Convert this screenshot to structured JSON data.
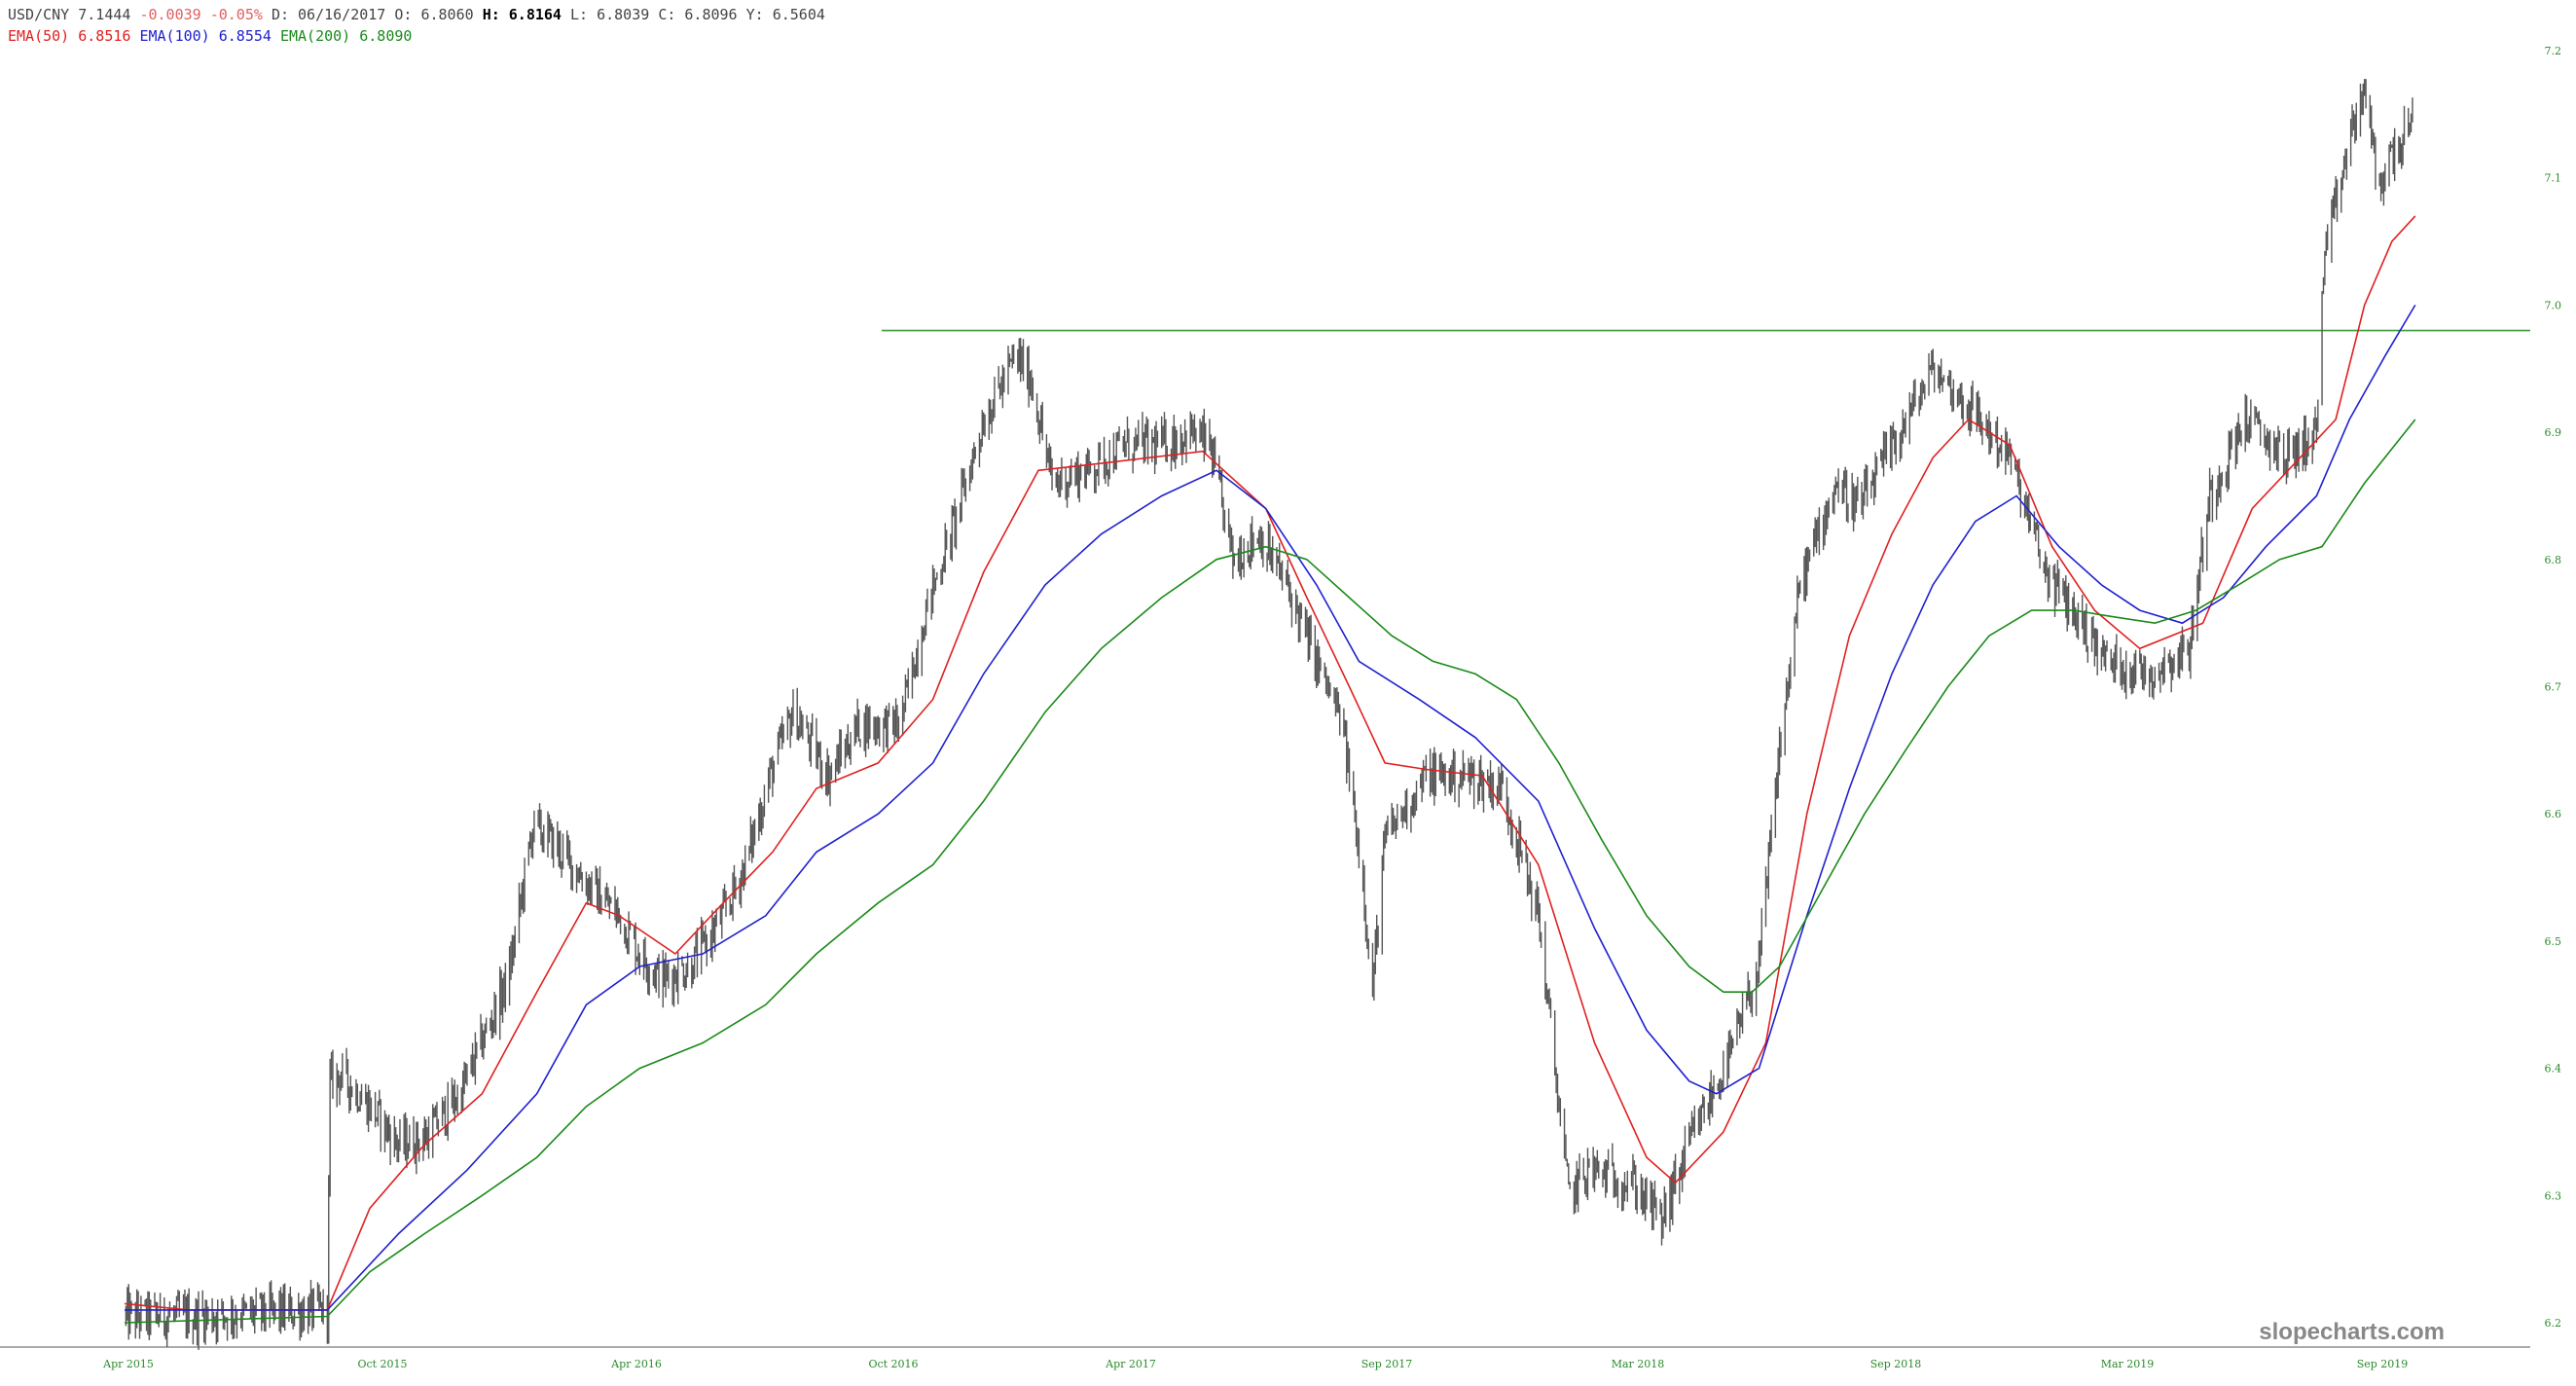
{
  "header": {
    "symbol": "USD/CNY",
    "last": "7.1444",
    "change": "-0.0039",
    "change_pct": "-0.05%",
    "date_label": "D:",
    "date": "06/16/2017",
    "open_label": "O:",
    "open": "6.8060",
    "high_label": "H:",
    "high": "6.8164",
    "low_label": "L:",
    "low": "6.8039",
    "close_label": "C:",
    "close": "6.8096",
    "y_label": "Y:",
    "y": "6.5604",
    "ema50_label": "EMA(50)",
    "ema50_value": "6.8516",
    "ema100_label": "EMA(100)",
    "ema100_value": "6.8554",
    "ema200_label": "EMA(200)",
    "ema200_value": "6.8090"
  },
  "watermark": "slopecharts.com",
  "colors": {
    "price": "#555555",
    "ema50": "#e02020",
    "ema100": "#2020d0",
    "ema200": "#1a8a1a",
    "hline": "#3a9a3a",
    "tick": "#2a8a2a"
  },
  "chart_data": {
    "type": "line",
    "x_tick_labels": [
      "Apr 2015",
      "Oct 2015",
      "Apr 2016",
      "Oct 2016",
      "Apr 2017",
      "Sep 2017",
      "Mar 2018",
      "Sep 2018",
      "Mar 2019",
      "Sep 2019"
    ],
    "y_tick_labels": [
      "7.2",
      "7.1",
      "7.0",
      "6.9",
      "6.8",
      "6.7",
      "6.6",
      "6.5",
      "6.4",
      "6.3",
      "6.2"
    ],
    "ylim": [
      6.19,
      7.21
    ],
    "date_range": [
      "2015-03-15",
      "2019-10-15"
    ],
    "horizontal_line": 6.98,
    "series": [
      {
        "name": "USD/CNY",
        "color": "#555555",
        "points": [
          [
            "2015-03-15",
            6.205
          ],
          [
            "2015-05-01",
            6.205
          ],
          [
            "2015-07-01",
            6.208
          ],
          [
            "2015-08-10",
            6.21
          ],
          [
            "2015-08-12",
            6.39
          ],
          [
            "2015-08-20",
            6.395
          ],
          [
            "2015-09-10",
            6.37
          ],
          [
            "2015-10-01",
            6.34
          ],
          [
            "2015-10-20",
            6.345
          ],
          [
            "2015-11-15",
            6.38
          ],
          [
            "2015-12-20",
            6.47
          ],
          [
            "2016-01-07",
            6.59
          ],
          [
            "2016-01-20",
            6.58
          ],
          [
            "2016-02-20",
            6.54
          ],
          [
            "2016-03-10",
            6.52
          ],
          [
            "2016-03-25",
            6.49
          ],
          [
            "2016-04-10",
            6.47
          ],
          [
            "2016-05-01",
            6.48
          ],
          [
            "2016-05-25",
            6.52
          ],
          [
            "2016-06-10",
            6.56
          ],
          [
            "2016-06-28",
            6.63
          ],
          [
            "2016-07-15",
            6.68
          ],
          [
            "2016-08-10",
            6.63
          ],
          [
            "2016-09-01",
            6.67
          ],
          [
            "2016-10-01",
            6.67
          ],
          [
            "2016-10-20",
            6.76
          ],
          [
            "2016-11-10",
            6.83
          ],
          [
            "2016-12-01",
            6.91
          ],
          [
            "2016-12-25",
            6.96
          ],
          [
            "2017-01-05",
            6.94
          ],
          [
            "2017-01-20",
            6.86
          ],
          [
            "2017-02-15",
            6.87
          ],
          [
            "2017-03-15",
            6.89
          ],
          [
            "2017-04-10",
            6.89
          ],
          [
            "2017-05-01",
            6.9
          ],
          [
            "2017-05-15",
            6.89
          ],
          [
            "2017-06-01",
            6.8
          ],
          [
            "2017-06-20",
            6.82
          ],
          [
            "2017-07-10",
            6.78
          ],
          [
            "2017-08-01",
            6.72
          ],
          [
            "2017-08-20",
            6.67
          ],
          [
            "2017-09-05",
            6.54
          ],
          [
            "2017-09-10",
            6.45
          ],
          [
            "2017-09-20",
            6.58
          ],
          [
            "2017-10-20",
            6.63
          ],
          [
            "2017-11-20",
            6.63
          ],
          [
            "2017-12-15",
            6.62
          ],
          [
            "2018-01-10",
            6.52
          ],
          [
            "2018-02-01",
            6.3
          ],
          [
            "2018-02-15",
            6.32
          ],
          [
            "2018-03-20",
            6.31
          ],
          [
            "2018-04-10",
            6.28
          ],
          [
            "2018-04-30",
            6.34
          ],
          [
            "2018-05-30",
            6.41
          ],
          [
            "2018-06-20",
            6.48
          ],
          [
            "2018-07-05",
            6.65
          ],
          [
            "2018-07-20",
            6.78
          ],
          [
            "2018-08-15",
            6.86
          ],
          [
            "2018-09-01",
            6.84
          ],
          [
            "2018-10-01",
            6.9
          ],
          [
            "2018-10-25",
            6.95
          ],
          [
            "2018-11-20",
            6.92
          ],
          [
            "2018-12-20",
            6.88
          ],
          [
            "2019-01-15",
            6.79
          ],
          [
            "2019-02-10",
            6.75
          ],
          [
            "2019-03-01",
            6.72
          ],
          [
            "2019-04-01",
            6.71
          ],
          [
            "2019-04-30",
            6.73
          ],
          [
            "2019-05-15",
            6.85
          ],
          [
            "2019-06-10",
            6.91
          ],
          [
            "2019-07-10",
            6.88
          ],
          [
            "2019-08-01",
            6.9
          ],
          [
            "2019-08-06",
            7.03
          ],
          [
            "2019-08-25",
            7.13
          ],
          [
            "2019-09-05",
            7.17
          ],
          [
            "2019-09-15",
            7.09
          ],
          [
            "2019-09-25",
            7.12
          ],
          [
            "2019-10-10",
            7.14
          ]
        ]
      },
      {
        "name": "EMA(50)",
        "color": "#e02020",
        "points": [
          [
            "2015-03-15",
            6.215
          ],
          [
            "2015-05-01",
            6.21
          ],
          [
            "2015-08-10",
            6.21
          ],
          [
            "2015-09-10",
            6.29
          ],
          [
            "2015-10-20",
            6.34
          ],
          [
            "2015-12-01",
            6.38
          ],
          [
            "2016-01-10",
            6.46
          ],
          [
            "2016-02-15",
            6.53
          ],
          [
            "2016-03-10",
            6.52
          ],
          [
            "2016-04-20",
            6.49
          ],
          [
            "2016-05-25",
            6.53
          ],
          [
            "2016-06-30",
            6.57
          ],
          [
            "2016-08-01",
            6.62
          ],
          [
            "2016-09-15",
            6.64
          ],
          [
            "2016-10-25",
            6.69
          ],
          [
            "2016-12-01",
            6.79
          ],
          [
            "2017-01-10",
            6.87
          ],
          [
            "2017-02-20",
            6.875
          ],
          [
            "2017-05-10",
            6.885
          ],
          [
            "2017-06-25",
            6.84
          ],
          [
            "2017-07-25",
            6.77
          ],
          [
            "2017-08-25",
            6.7
          ],
          [
            "2017-09-20",
            6.64
          ],
          [
            "2017-10-20",
            6.635
          ],
          [
            "2017-11-30",
            6.63
          ],
          [
            "2018-01-10",
            6.56
          ],
          [
            "2018-02-20",
            6.42
          ],
          [
            "2018-03-30",
            6.33
          ],
          [
            "2018-04-20",
            6.31
          ],
          [
            "2018-05-25",
            6.35
          ],
          [
            "2018-06-25",
            6.42
          ],
          [
            "2018-07-25",
            6.6
          ],
          [
            "2018-08-25",
            6.74
          ],
          [
            "2018-09-25",
            6.82
          ],
          [
            "2018-10-25",
            6.88
          ],
          [
            "2018-11-20",
            6.91
          ],
          [
            "2018-12-20",
            6.89
          ],
          [
            "2019-01-20",
            6.81
          ],
          [
            "2019-02-20",
            6.76
          ],
          [
            "2019-03-25",
            6.73
          ],
          [
            "2019-05-10",
            6.75
          ],
          [
            "2019-06-15",
            6.84
          ],
          [
            "2019-07-20",
            6.88
          ],
          [
            "2019-08-15",
            6.91
          ],
          [
            "2019-09-05",
            7.0
          ],
          [
            "2019-09-25",
            7.05
          ],
          [
            "2019-10-12",
            7.07
          ]
        ]
      },
      {
        "name": "EMA(100)",
        "color": "#2020d0",
        "points": [
          [
            "2015-03-15",
            6.21
          ],
          [
            "2015-08-10",
            6.21
          ],
          [
            "2015-10-01",
            6.27
          ],
          [
            "2015-11-20",
            6.32
          ],
          [
            "2016-01-10",
            6.38
          ],
          [
            "2016-02-15",
            6.45
          ],
          [
            "2016-03-25",
            6.48
          ],
          [
            "2016-05-10",
            6.49
          ],
          [
            "2016-06-25",
            6.52
          ],
          [
            "2016-08-01",
            6.57
          ],
          [
            "2016-09-15",
            6.6
          ],
          [
            "2016-10-25",
            6.64
          ],
          [
            "2016-12-01",
            6.71
          ],
          [
            "2017-01-15",
            6.78
          ],
          [
            "2017-02-25",
            6.82
          ],
          [
            "2017-04-10",
            6.85
          ],
          [
            "2017-05-20",
            6.87
          ],
          [
            "2017-06-25",
            6.84
          ],
          [
            "2017-08-01",
            6.78
          ],
          [
            "2017-09-01",
            6.72
          ],
          [
            "2017-10-15",
            6.69
          ],
          [
            "2017-11-25",
            6.66
          ],
          [
            "2018-01-10",
            6.61
          ],
          [
            "2018-02-20",
            6.51
          ],
          [
            "2018-03-30",
            6.43
          ],
          [
            "2018-04-30",
            6.39
          ],
          [
            "2018-05-20",
            6.38
          ],
          [
            "2018-06-20",
            6.4
          ],
          [
            "2018-07-25",
            6.52
          ],
          [
            "2018-08-25",
            6.62
          ],
          [
            "2018-09-25",
            6.71
          ],
          [
            "2018-10-25",
            6.78
          ],
          [
            "2018-11-25",
            6.83
          ],
          [
            "2018-12-25",
            6.85
          ],
          [
            "2019-01-25",
            6.81
          ],
          [
            "2019-02-25",
            6.78
          ],
          [
            "2019-03-25",
            6.76
          ],
          [
            "2019-04-25",
            6.75
          ],
          [
            "2019-05-25",
            6.77
          ],
          [
            "2019-06-25",
            6.81
          ],
          [
            "2019-08-01",
            6.85
          ],
          [
            "2019-08-25",
            6.91
          ],
          [
            "2019-09-20",
            6.96
          ],
          [
            "2019-10-12",
            7.0
          ]
        ]
      },
      {
        "name": "EMA(200)",
        "color": "#1a8a1a",
        "points": [
          [
            "2015-03-15",
            6.2
          ],
          [
            "2015-08-10",
            6.205
          ],
          [
            "2015-09-10",
            6.24
          ],
          [
            "2015-10-20",
            6.27
          ],
          [
            "2015-12-01",
            6.3
          ],
          [
            "2016-01-10",
            6.33
          ],
          [
            "2016-02-15",
            6.37
          ],
          [
            "2016-03-25",
            6.4
          ],
          [
            "2016-05-10",
            6.42
          ],
          [
            "2016-06-25",
            6.45
          ],
          [
            "2016-08-01",
            6.49
          ],
          [
            "2016-09-15",
            6.53
          ],
          [
            "2016-10-25",
            6.56
          ],
          [
            "2016-12-01",
            6.61
          ],
          [
            "2017-01-15",
            6.68
          ],
          [
            "2017-02-25",
            6.73
          ],
          [
            "2017-04-10",
            6.77
          ],
          [
            "2017-05-20",
            6.8
          ],
          [
            "2017-06-25",
            6.81
          ],
          [
            "2017-07-25",
            6.8
          ],
          [
            "2017-08-25",
            6.77
          ],
          [
            "2017-09-25",
            6.74
          ],
          [
            "2017-10-25",
            6.72
          ],
          [
            "2017-11-25",
            6.71
          ],
          [
            "2017-12-25",
            6.69
          ],
          [
            "2018-01-25",
            6.64
          ],
          [
            "2018-02-25",
            6.58
          ],
          [
            "2018-03-30",
            6.52
          ],
          [
            "2018-04-30",
            6.48
          ],
          [
            "2018-05-25",
            6.46
          ],
          [
            "2018-06-15",
            6.46
          ],
          [
            "2018-07-05",
            6.48
          ],
          [
            "2018-08-05",
            6.54
          ],
          [
            "2018-09-05",
            6.6
          ],
          [
            "2018-10-05",
            6.65
          ],
          [
            "2018-11-05",
            6.7
          ],
          [
            "2018-12-05",
            6.74
          ],
          [
            "2019-01-05",
            6.76
          ],
          [
            "2019-02-05",
            6.76
          ],
          [
            "2019-03-05",
            6.755
          ],
          [
            "2019-04-05",
            6.75
          ],
          [
            "2019-05-05",
            6.76
          ],
          [
            "2019-06-05",
            6.78
          ],
          [
            "2019-07-05",
            6.8
          ],
          [
            "2019-08-05",
            6.81
          ],
          [
            "2019-09-05",
            6.86
          ],
          [
            "2019-10-12",
            6.91
          ]
        ]
      }
    ]
  }
}
